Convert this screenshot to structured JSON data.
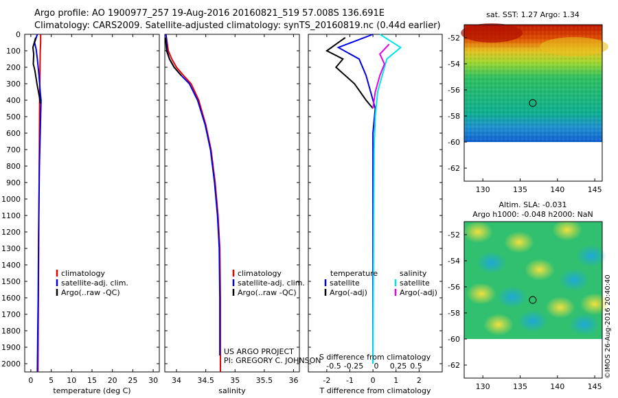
{
  "header": {
    "line1": "Argo profile: AO 1900977_257 19-Aug-2016 20160821_519 57.008S 136.691E",
    "line2": "Climatology: CARS2009. Satellite-adjusted climatology: synTS_20160819.nc (0.44d earlier)"
  },
  "colors": {
    "climatology": "#e60000",
    "satellite": "#0000e6",
    "argo": "#000000",
    "salinity_satellite": "#00e6e6",
    "salinity_argo": "#e600e6"
  },
  "chart_data": [
    {
      "type": "line",
      "xlabel": "temperature (deg C)",
      "xticks": [
        0,
        5,
        10,
        15,
        20,
        25,
        30
      ],
      "xlim": [
        -1.5,
        31.5
      ],
      "ylim": [
        2050,
        0
      ],
      "yticks": [
        0,
        100,
        200,
        300,
        400,
        500,
        600,
        700,
        800,
        900,
        1000,
        1100,
        1200,
        1300,
        1400,
        1500,
        1600,
        1700,
        1800,
        1900,
        2000
      ],
      "legend": [
        "climatology",
        "satellite-adj. clim.",
        "Argo(..raw -QC)"
      ],
      "series": [
        {
          "name": "climatology",
          "color": "climatology",
          "x": [
            2.4,
            2.4,
            2.3,
            2.25,
            2.2,
            2.15,
            2.1,
            2.05,
            2.0,
            1.95,
            1.9,
            1.85,
            1.8,
            1.75
          ],
          "y": [
            0,
            50,
            100,
            200,
            300,
            400,
            600,
            800,
            1000,
            1200,
            1400,
            1600,
            1800,
            2050
          ]
        },
        {
          "name": "satellite-adj. clim.",
          "color": "satellite",
          "x": [
            1.6,
            0.9,
            1.3,
            1.6,
            2.0,
            2.3,
            2.5,
            2.3,
            2.1,
            2.0,
            1.9,
            1.8,
            1.7,
            1.6
          ],
          "y": [
            0,
            50,
            90,
            150,
            250,
            350,
            400,
            600,
            800,
            1000,
            1200,
            1600,
            1800,
            2050
          ]
        },
        {
          "name": "Argo(..raw -QC)",
          "color": "argo",
          "x": [
            1.2,
            0.5,
            0.7,
            0.6,
            1.0,
            1.5,
            2.1,
            2.3
          ],
          "y": [
            20,
            80,
            120,
            180,
            220,
            300,
            380,
            420
          ]
        }
      ]
    },
    {
      "type": "line",
      "xlabel": "salinity",
      "xticks": [
        34,
        34.5,
        35,
        35.5,
        36
      ],
      "xlim": [
        33.8,
        36.1
      ],
      "ylim": [
        2050,
        0
      ],
      "legend": [
        "climatology",
        "satellite-adj. clim.",
        "Argo(..raw -QC)"
      ],
      "annotations": [
        "US ARGO PROJECT",
        "PI: GREGORY C. JOHNSON"
      ],
      "series": [
        {
          "name": "climatology",
          "color": "climatology",
          "x": [
            33.82,
            33.86,
            33.92,
            34.0,
            34.12,
            34.25,
            34.38,
            34.5,
            34.59,
            34.66,
            34.71,
            34.74,
            34.75,
            34.75
          ],
          "y": [
            0,
            100,
            150,
            200,
            250,
            300,
            400,
            550,
            700,
            900,
            1100,
            1300,
            1600,
            2050
          ]
        },
        {
          "name": "satellite-adj. clim.",
          "color": "satellite",
          "x": [
            33.82,
            33.84,
            33.88,
            33.96,
            34.08,
            34.22,
            34.36,
            34.49,
            34.58,
            34.65,
            34.7,
            34.73,
            34.74,
            34.74
          ],
          "y": [
            0,
            100,
            150,
            200,
            250,
            300,
            400,
            550,
            700,
            900,
            1100,
            1300,
            1600,
            1950
          ]
        },
        {
          "name": "Argo(..raw -QC)",
          "color": "argo",
          "x": [
            33.81,
            33.83,
            33.88,
            33.96,
            34.08
          ],
          "y": [
            20,
            100,
            150,
            200,
            250
          ]
        }
      ]
    },
    {
      "type": "line",
      "xlabel": "T difference from climatology",
      "xlabel_top": "S difference from climatology",
      "xticks": [
        -2,
        -1,
        0,
        1,
        2
      ],
      "xticks_top": [
        "-0.5",
        "-0.25",
        "0",
        "0.25",
        "0.5"
      ],
      "xlim": [
        -2.8,
        3.0
      ],
      "ylim": [
        2050,
        0
      ],
      "legend_headers": [
        "temperature",
        "salinity"
      ],
      "legend": [
        "satellite",
        "Argo(-adj)",
        "satellite",
        "Argo(-adj)"
      ],
      "series": [
        {
          "name": "satellite",
          "color": "satellite",
          "x": [
            0.0,
            -1.5,
            -0.6,
            -0.3,
            -0.1,
            0.1,
            0.0,
            0.0
          ],
          "y": [
            0,
            80,
            150,
            250,
            350,
            450,
            600,
            2000
          ]
        },
        {
          "name": "Argo(-adj)",
          "color": "argo",
          "x": [
            -1.2,
            -2.0,
            -1.3,
            -1.6,
            -0.8,
            -0.3,
            0.0
          ],
          "y": [
            20,
            100,
            150,
            200,
            300,
            400,
            450
          ]
        },
        {
          "name": "satellite",
          "color": "salinity_satellite",
          "x": [
            0.3,
            1.2,
            0.6,
            0.4,
            0.2,
            0.1,
            0.05,
            0.0
          ],
          "y": [
            0,
            80,
            150,
            250,
            350,
            500,
            700,
            2000
          ]
        },
        {
          "name": "Argo(-adj)",
          "color": "salinity_argo",
          "x": [
            0.7,
            0.3,
            0.5,
            0.3,
            0.1,
            0.0
          ],
          "y": [
            60,
            120,
            180,
            250,
            350,
            450
          ]
        }
      ]
    },
    {
      "type": "heatmap",
      "title": "sat. SST: 1.27 Argo: 1.34",
      "xticks": [
        130,
        135,
        140,
        145
      ],
      "yticks": [
        -52,
        -54,
        -56,
        -58,
        -60,
        -62
      ],
      "xlim": [
        127.5,
        146
      ],
      "ylim": [
        -63,
        -51
      ],
      "marker": {
        "lon": 136.691,
        "lat": -57.008
      }
    },
    {
      "type": "heatmap",
      "title": "Altim. SLA: -0.031",
      "subtitle": "Argo h1000: -0.048 h2000: NaN",
      "xticks": [
        130,
        135,
        140,
        145
      ],
      "yticks": [
        -52,
        -54,
        -56,
        -58,
        -60,
        -62
      ],
      "xlim": [
        127.5,
        146
      ],
      "ylim": [
        -63,
        -51
      ],
      "marker": {
        "lon": 136.691,
        "lat": -57.008
      }
    }
  ],
  "watermark": "©IMOS 26-Aug-2016 20:40:40"
}
